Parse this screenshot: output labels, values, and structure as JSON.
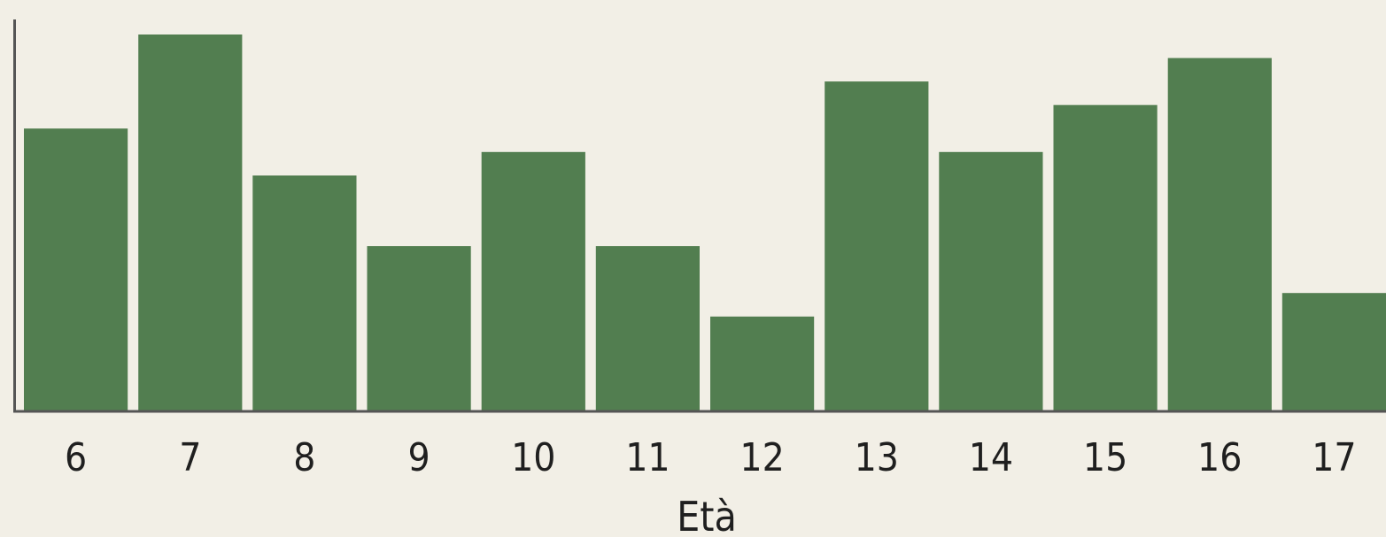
{
  "colors": {
    "background": "#f2efe6",
    "bar": "#527e50",
    "axis": "#555555"
  },
  "chart_data": {
    "type": "bar",
    "title": "",
    "xlabel": "Età",
    "ylabel": "",
    "categories": [
      "6",
      "7",
      "8",
      "9",
      "10",
      "11",
      "12",
      "13",
      "14",
      "15",
      "16",
      "17"
    ],
    "values": [
      6,
      8,
      5,
      3.5,
      5.5,
      3.5,
      2,
      7,
      5.5,
      6.5,
      7.5,
      2.5
    ],
    "ylim": [
      0,
      8.75
    ],
    "grid": false,
    "legend": "none"
  }
}
